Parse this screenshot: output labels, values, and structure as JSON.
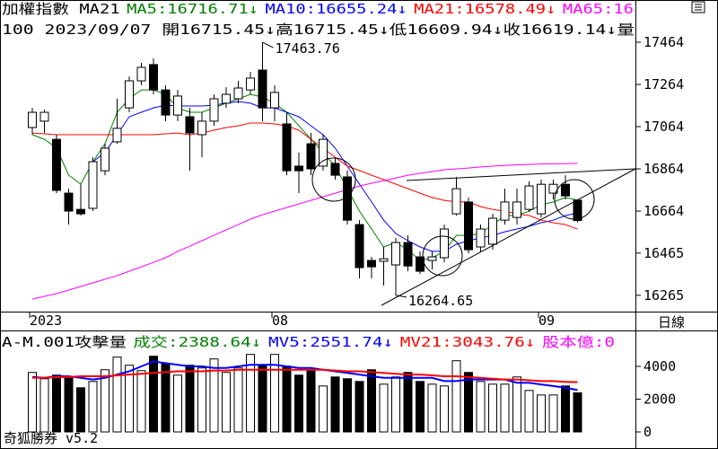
{
  "chart_data": [
    {
      "type": "candlestick",
      "title": "加權指數 MA21",
      "info": "100 2023/09/07 開16715.45↓高16715.45↓低16609.94↓收16619.14↓量",
      "categories": [
        "2023",
        null,
        null,
        null,
        null,
        null,
        null,
        null,
        null,
        null,
        null,
        null,
        null,
        null,
        null,
        null,
        null,
        null,
        null,
        null,
        "08",
        null,
        null,
        null,
        null,
        null,
        null,
        null,
        null,
        null,
        null,
        null,
        null,
        null,
        null,
        null,
        null,
        null,
        null,
        null,
        null,
        null,
        "09",
        null,
        null,
        null
      ],
      "open": [
        17060,
        17090,
        17004,
        16749,
        16672,
        16677,
        16855,
        16992,
        17153,
        17281,
        17358,
        17238,
        17119,
        17111,
        17026,
        17090,
        17175,
        17196,
        17238,
        17332,
        17153,
        17077,
        16877,
        16983,
        16877,
        16890,
        16826,
        16600,
        16430,
        16426,
        16409,
        16515,
        16447,
        16430,
        16443,
        16651,
        16707,
        16494,
        16507,
        16621,
        16634,
        16672,
        16651,
        16749,
        16791,
        16715.45
      ],
      "high": [
        17153,
        17145,
        17026,
        16770,
        16791,
        16919,
        16983,
        17196,
        17302,
        17366,
        17387,
        17260,
        17238,
        17153,
        17132,
        17217,
        17251,
        17281,
        17323,
        17463.76,
        17260,
        17132,
        16941,
        17034,
        17026,
        16919,
        16856,
        16621,
        16447,
        16494,
        16537,
        16549,
        16473,
        16473,
        16600,
        16826,
        16728,
        16600,
        16651,
        16770,
        16770,
        16804,
        16813,
        16813,
        16834,
        16715.45
      ],
      "low": [
        17026,
        17034,
        16749,
        16600,
        16643,
        16664,
        16834,
        16983,
        17132,
        17260,
        17217,
        17090,
        17090,
        16856,
        16919,
        17068,
        17153,
        17175,
        17217,
        17090,
        17090,
        16834,
        16749,
        16834,
        16855,
        16813,
        16600,
        16345,
        16345,
        16311,
        16264.65,
        16379,
        16366,
        16387,
        16421,
        16643,
        16464,
        16473,
        16481,
        16600,
        16600,
        16660,
        16634,
        16719,
        16719,
        16609.94
      ],
      "close": [
        17132,
        17132,
        16762,
        16664,
        16651,
        16898,
        16962,
        17056,
        17281,
        17345,
        17238,
        17119,
        17209,
        17034,
        17090,
        17196,
        17217,
        17247,
        17294,
        17153,
        17226,
        16855,
        16855,
        16864,
        17004,
        16834,
        16621,
        16396,
        16400,
        16438,
        16515,
        16404,
        16379,
        16447,
        16579,
        16770,
        16481,
        16579,
        16630,
        16707,
        16707,
        16783,
        16791,
        16791,
        16736,
        16619.14
      ],
      "lines": [
        {
          "label": "MA5:16716.71↓",
          "color": "#008000",
          "values": [
            17026,
            17004,
            16962,
            16834,
            16792,
            16898,
            16983,
            17132,
            17196,
            17238,
            17238,
            17217,
            17153,
            17132,
            17132,
            17153,
            17175,
            17196,
            17217,
            17204,
            17175,
            17132,
            17068,
            17004,
            16941,
            16877,
            16770,
            16664,
            16579,
            16494,
            16515,
            16481,
            16430,
            16443,
            16473,
            16549,
            16549,
            16558,
            16600,
            16643,
            16643,
            16664,
            16694,
            16707,
            16728,
            16716.71
          ]
        },
        {
          "label": "MA10:16655.24↓",
          "color": "#0000ff",
          "values": [
            null,
            null,
            null,
            null,
            null,
            16898,
            16941,
            17026,
            17111,
            17132,
            17153,
            17166,
            17162,
            17162,
            17162,
            17166,
            17175,
            17183,
            17175,
            17153,
            17153,
            17132,
            17111,
            17068,
            17026,
            16962,
            16877,
            16792,
            16707,
            16621,
            16558,
            16524,
            16494,
            16473,
            16473,
            16507,
            16524,
            16537,
            16549,
            16566,
            16579,
            16592,
            16609,
            16621,
            16643,
            16655.24
          ]
        },
        {
          "label": "MA21:16578.49↓",
          "color": "#ff0000",
          "values": [
            17034,
            17030,
            17026,
            17026,
            17026,
            17026,
            17026,
            17026,
            17026,
            17026,
            17026,
            17030,
            17034,
            17026,
            17034,
            17047,
            17060,
            17068,
            17081,
            17081,
            17077,
            17068,
            17047,
            17004,
            16962,
            16919,
            16877,
            16856,
            16834,
            16813,
            16792,
            16770,
            16749,
            16728,
            16715,
            16707,
            16707,
            16685,
            16672,
            16664,
            16651,
            16643,
            16621,
            16609,
            16600,
            16578.49
          ]
        },
        {
          "label": "MA65:16",
          "color": "#ff00ff",
          "values": [
            16247,
            16260,
            16273,
            16290,
            16307,
            16324,
            16341,
            16358,
            16379,
            16400,
            16421,
            16443,
            16473,
            16498,
            16524,
            16549,
            16575,
            16600,
            16626,
            16647,
            16664,
            16681,
            16698,
            16715,
            16732,
            16749,
            16766,
            16783,
            16796,
            16808,
            16821,
            16834,
            16843,
            16851,
            16860,
            16864,
            16868,
            16873,
            16877,
            16880,
            16883,
            16885,
            16887,
            16888,
            16889,
            16890
          ]
        }
      ],
      "annotations": [
        17463.76,
        16264.65
      ],
      "ylim": [
        16192,
        17664
      ],
      "yticks": [
        16265,
        16465,
        16664,
        16864,
        17064,
        17264,
        17464
      ]
    },
    {
      "type": "bar",
      "title": "A-M.001攻擊量",
      "bar_label": "成交:2388.64↓",
      "bar_label_color": "#008000",
      "values": [
        3630,
        3245,
        3465,
        3355,
        2695,
        3080,
        3795,
        4565,
        4070,
        3740,
        4620,
        4180,
        3465,
        4070,
        3905,
        4455,
        3630,
        3905,
        4730,
        4070,
        4730,
        4015,
        3465,
        3740,
        2805,
        3355,
        3245,
        3080,
        3795,
        2915,
        3355,
        3630,
        3080,
        2915,
        2805,
        4345,
        3630,
        3080,
        2915,
        2915,
        3355,
        2530,
        2255,
        2255,
        2805,
        2388.64
      ],
      "lines": [
        {
          "label": "MV5:2551.74↓",
          "color": "#0000ff",
          "values": [
            3355,
            3300,
            3400,
            3400,
            3300,
            3200,
            3300,
            3500,
            3700,
            4000,
            4300,
            4200,
            4100,
            4000,
            4000,
            3900,
            3900,
            4000,
            4100,
            4100,
            4100,
            4000,
            3900,
            3900,
            3800,
            3700,
            3600,
            3500,
            3400,
            3300,
            3300,
            3300,
            3300,
            3300,
            3100,
            3100,
            3200,
            3200,
            3200,
            3200,
            3000,
            3000,
            2900,
            2800,
            2700,
            2551.74
          ]
        },
        {
          "label": "MV21:3043.76↓",
          "color": "#ff0000",
          "values": [
            3300,
            3300,
            3350,
            3350,
            3400,
            3400,
            3400,
            3450,
            3500,
            3550,
            3600,
            3650,
            3700,
            3700,
            3700,
            3750,
            3750,
            3800,
            3800,
            3800,
            3800,
            3800,
            3800,
            3800,
            3800,
            3750,
            3700,
            3700,
            3650,
            3600,
            3550,
            3500,
            3500,
            3450,
            3400,
            3400,
            3350,
            3300,
            3250,
            3200,
            3200,
            3150,
            3100,
            3100,
            3050,
            3043.76
          ]
        }
      ],
      "extra_label": "股本億:0",
      "extra_label_color": "#ff00ff",
      "ylim": [
        -877,
        6192
      ],
      "yticks": [
        0,
        2000,
        4000
      ]
    }
  ],
  "period_label": "日線",
  "footer": "奇狐勝券 v5.2"
}
